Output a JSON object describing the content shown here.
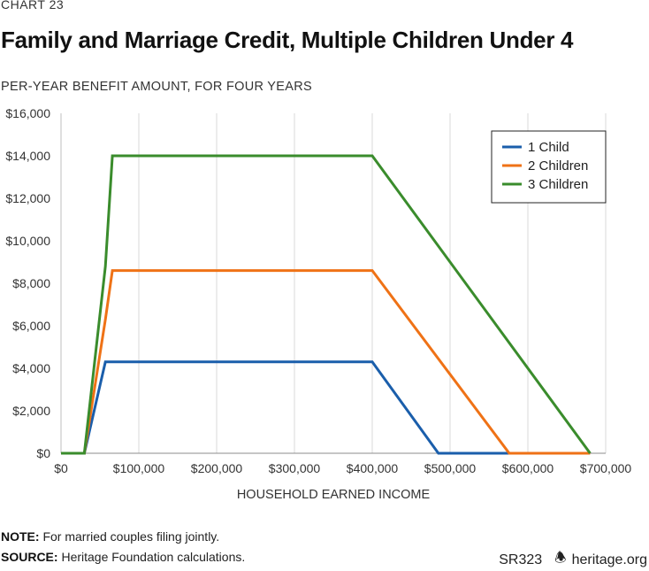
{
  "header": {
    "chart_number": "CHART 23",
    "title": "Family and Marriage Credit, Multiple Children Under 4",
    "subtitle": "PER-YEAR BENEFIT AMOUNT, FOR FOUR YEARS"
  },
  "footer": {
    "note_label": "NOTE:",
    "note_text": " For married couples filing jointly.",
    "source_label": "SOURCE:",
    "source_text": " Heritage Foundation calculations.",
    "report_id": "SR323",
    "logo_icon": "bell-icon",
    "website": "heritage.org"
  },
  "chart_data": {
    "type": "line",
    "title": "Family and Marriage Credit, Multiple Children Under 4",
    "xlabel": "HOUSEHOLD EARNED INCOME",
    "ylabel": "PER-YEAR BENEFIT AMOUNT, FOR FOUR YEARS",
    "xlim": [
      0,
      700000
    ],
    "ylim": [
      0,
      16000
    ],
    "x_ticks": [
      0,
      100000,
      200000,
      300000,
      400000,
      500000,
      600000,
      700000
    ],
    "x_tick_labels": [
      "$0",
      "$100,000",
      "$200,000",
      "$300,000",
      "$400,000",
      "$500,000",
      "$600,000",
      "$700,000"
    ],
    "y_ticks": [
      0,
      2000,
      4000,
      6000,
      8000,
      10000,
      12000,
      14000,
      16000
    ],
    "y_tick_labels": [
      "$0",
      "$2,000",
      "$4,000",
      "$6,000",
      "$8,000",
      "$10,000",
      "$12,000",
      "$14,000",
      "$16,000"
    ],
    "grid": "vertical",
    "legend_position": "top-right",
    "series": [
      {
        "name": "1 Child",
        "color": "#1a5eab",
        "points": [
          [
            0,
            0
          ],
          [
            30000,
            0
          ],
          [
            57000,
            4300
          ],
          [
            400000,
            4300
          ],
          [
            485000,
            0
          ],
          [
            576000,
            0
          ]
        ]
      },
      {
        "name": "2 Children",
        "color": "#ef7216",
        "points": [
          [
            0,
            0
          ],
          [
            30000,
            0
          ],
          [
            57000,
            6300
          ],
          [
            66000,
            8600
          ],
          [
            400000,
            8600
          ],
          [
            576000,
            0
          ],
          [
            680000,
            0
          ]
        ]
      },
      {
        "name": "3 Children",
        "color": "#3a8c2c",
        "points": [
          [
            0,
            0
          ],
          [
            30000,
            0
          ],
          [
            57000,
            8800
          ],
          [
            66000,
            14000
          ],
          [
            400000,
            14000
          ],
          [
            680000,
            0
          ]
        ]
      }
    ]
  }
}
